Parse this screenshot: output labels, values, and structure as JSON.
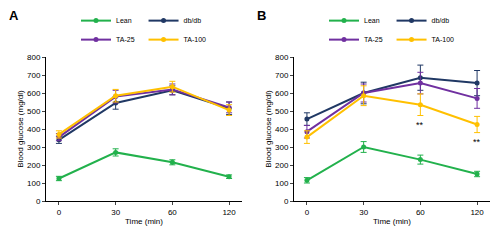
{
  "chart_data": [
    {
      "type": "line",
      "title": "A",
      "x_label": "Time (min)",
      "y_label": "Blood glucose (mg/dl)",
      "categories": [
        "0",
        "30",
        "60",
        "120"
      ],
      "ylim": [
        0,
        800
      ],
      "yticks": [
        0,
        100,
        200,
        300,
        400,
        500,
        600,
        700,
        800
      ],
      "grid": false,
      "legend": "top",
      "marker": "circle",
      "line_style": "solid",
      "series": [
        {
          "name": "Lean",
          "color": "#22b14c",
          "values": [
            125,
            270,
            215,
            135
          ],
          "errors": [
            12,
            20,
            14,
            10
          ]
        },
        {
          "name": "db/db",
          "color": "#203864",
          "values": [
            340,
            545,
            615,
            515
          ],
          "errors": [
            20,
            35,
            25,
            35
          ]
        },
        {
          "name": "TA-25",
          "color": "#7030a0",
          "values": [
            355,
            580,
            620,
            520
          ],
          "errors": [
            20,
            35,
            30,
            30
          ]
        },
        {
          "name": "TA-100",
          "color": "#ffc000",
          "values": [
            370,
            585,
            635,
            505
          ],
          "errors": [
            20,
            35,
            30,
            30
          ]
        }
      ],
      "annotations": []
    },
    {
      "type": "line",
      "title": "B",
      "x_label": "Time (min)",
      "y_label": "Blood glucose (mg/dl)",
      "categories": [
        "0",
        "30",
        "60",
        "120"
      ],
      "ylim": [
        0,
        800
      ],
      "yticks": [
        0,
        100,
        200,
        300,
        400,
        500,
        600,
        700,
        800
      ],
      "grid": false,
      "legend": "top",
      "marker": "circle",
      "line_style": "solid",
      "series": [
        {
          "name": "Lean",
          "color": "#22b14c",
          "values": [
            115,
            300,
            230,
            150
          ],
          "errors": [
            15,
            30,
            25,
            15
          ]
        },
        {
          "name": "db/db",
          "color": "#203864",
          "values": [
            455,
            600,
            685,
            655
          ],
          "errors": [
            35,
            60,
            70,
            70
          ]
        },
        {
          "name": "TA-25",
          "color": "#7030a0",
          "values": [
            385,
            600,
            655,
            570
          ],
          "errors": [
            35,
            50,
            60,
            55
          ]
        },
        {
          "name": "TA-100",
          "color": "#ffc000",
          "values": [
            355,
            585,
            535,
            425
          ],
          "errors": [
            35,
            55,
            60,
            45
          ]
        }
      ],
      "annotations": [
        {
          "series": "TA-100",
          "category": "60",
          "text": "**"
        },
        {
          "series": "TA-100",
          "category": "120",
          "text": "**"
        }
      ]
    }
  ]
}
